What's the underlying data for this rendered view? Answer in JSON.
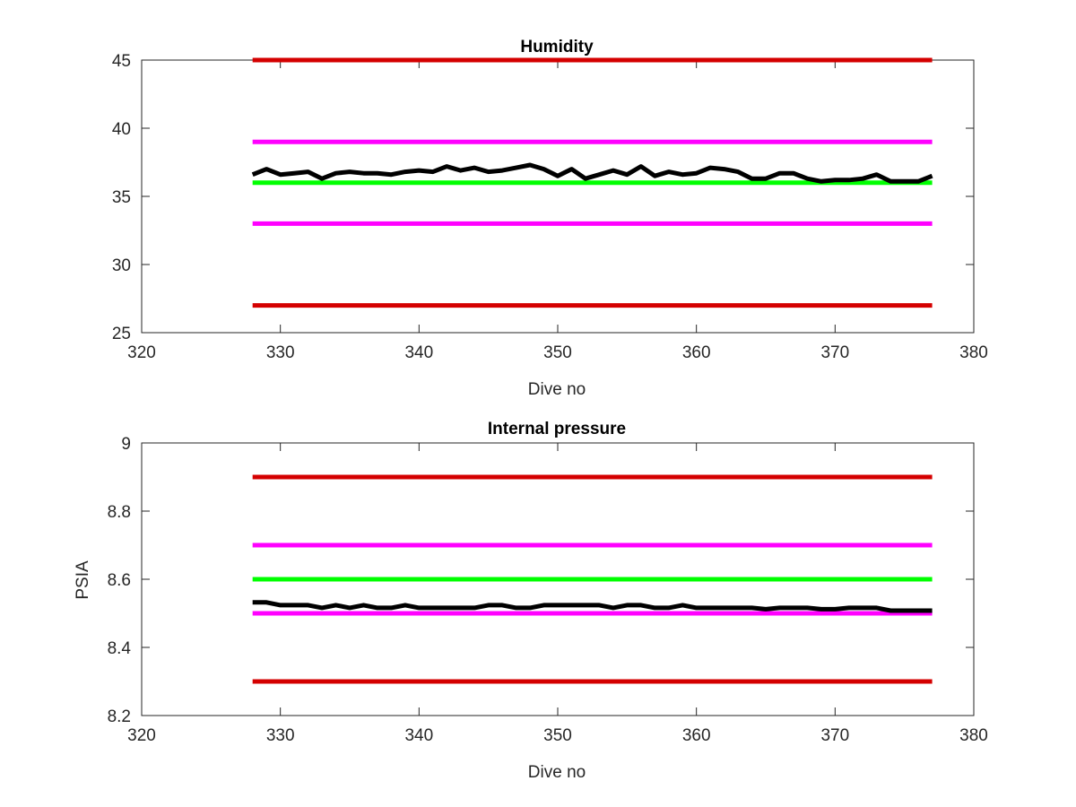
{
  "chart_data": [
    {
      "type": "line",
      "title": "Humidity",
      "xlabel": "Dive no",
      "ylabel": "",
      "xlim": [
        320,
        380
      ],
      "ylim": [
        25,
        45
      ],
      "xticks": [
        320,
        330,
        340,
        350,
        360,
        370,
        380
      ],
      "yticks": [
        25,
        30,
        35,
        40,
        45
      ],
      "grid": false,
      "series": [
        {
          "x": [
            328,
            377
          ],
          "y": [
            45,
            45
          ],
          "color": "#d40000"
        },
        {
          "x": [
            328,
            377
          ],
          "y": [
            39,
            39
          ],
          "color": "#ff00ff"
        },
        {
          "x": [
            328,
            377
          ],
          "y": [
            36,
            36
          ],
          "color": "#00ff00"
        },
        {
          "x": [
            328,
            377
          ],
          "y": [
            33,
            33
          ],
          "color": "#ff00ff"
        },
        {
          "x": [
            328,
            377
          ],
          "y": [
            27,
            27
          ],
          "color": "#d40000"
        },
        {
          "color": "#000000",
          "x": [
            328,
            329,
            330,
            331,
            332,
            333,
            334,
            335,
            336,
            337,
            338,
            339,
            340,
            341,
            342,
            343,
            344,
            345,
            346,
            347,
            348,
            349,
            350,
            351,
            352,
            353,
            354,
            355,
            356,
            357,
            358,
            359,
            360,
            361,
            362,
            363,
            364,
            365,
            366,
            367,
            368,
            369,
            370,
            371,
            372,
            373,
            374,
            375,
            376,
            377
          ],
          "y": [
            36.6,
            37.0,
            36.6,
            36.7,
            36.8,
            36.3,
            36.7,
            36.8,
            36.7,
            36.7,
            36.6,
            36.8,
            36.9,
            36.8,
            37.2,
            36.9,
            37.1,
            36.8,
            36.9,
            37.1,
            37.3,
            37.0,
            36.5,
            37.0,
            36.3,
            36.6,
            36.9,
            36.6,
            37.2,
            36.5,
            36.8,
            36.6,
            36.7,
            37.1,
            37.0,
            36.8,
            36.3,
            36.3,
            36.7,
            36.7,
            36.3,
            36.1,
            36.2,
            36.2,
            36.3,
            36.6,
            36.1,
            36.1,
            36.1,
            36.5
          ]
        }
      ]
    },
    {
      "type": "line",
      "title": "Internal pressure",
      "xlabel": "Dive no",
      "ylabel": "PSIA",
      "xlim": [
        320,
        380
      ],
      "ylim": [
        8.2,
        9
      ],
      "xticks": [
        320,
        330,
        340,
        350,
        360,
        370,
        380
      ],
      "yticks": [
        8.2,
        8.4,
        8.6,
        8.8,
        9
      ],
      "grid": false,
      "series": [
        {
          "x": [
            328,
            377
          ],
          "y": [
            8.9,
            8.9
          ],
          "color": "#d40000"
        },
        {
          "x": [
            328,
            377
          ],
          "y": [
            8.7,
            8.7
          ],
          "color": "#ff00ff"
        },
        {
          "x": [
            328,
            377
          ],
          "y": [
            8.6,
            8.6
          ],
          "color": "#00ff00"
        },
        {
          "x": [
            328,
            377
          ],
          "y": [
            8.5,
            8.5
          ],
          "color": "#ff00ff"
        },
        {
          "x": [
            328,
            377
          ],
          "y": [
            8.3,
            8.3
          ],
          "color": "#d40000"
        },
        {
          "color": "#000000",
          "x": [
            328,
            329,
            330,
            331,
            332,
            333,
            334,
            335,
            336,
            337,
            338,
            339,
            340,
            341,
            342,
            343,
            344,
            345,
            346,
            347,
            348,
            349,
            350,
            351,
            352,
            353,
            354,
            355,
            356,
            357,
            358,
            359,
            360,
            361,
            362,
            363,
            364,
            365,
            366,
            367,
            368,
            369,
            370,
            371,
            372,
            373,
            374,
            375,
            376,
            377
          ],
          "y": [
            8.532,
            8.532,
            8.524,
            8.524,
            8.524,
            8.516,
            8.524,
            8.516,
            8.524,
            8.516,
            8.516,
            8.524,
            8.516,
            8.516,
            8.516,
            8.516,
            8.516,
            8.524,
            8.524,
            8.516,
            8.516,
            8.524,
            8.524,
            8.524,
            8.524,
            8.524,
            8.516,
            8.524,
            8.524,
            8.516,
            8.516,
            8.524,
            8.516,
            8.516,
            8.516,
            8.516,
            8.516,
            8.512,
            8.516,
            8.516,
            8.516,
            8.512,
            8.512,
            8.516,
            8.516,
            8.516,
            8.508,
            8.508,
            8.508,
            8.508
          ]
        }
      ]
    }
  ]
}
